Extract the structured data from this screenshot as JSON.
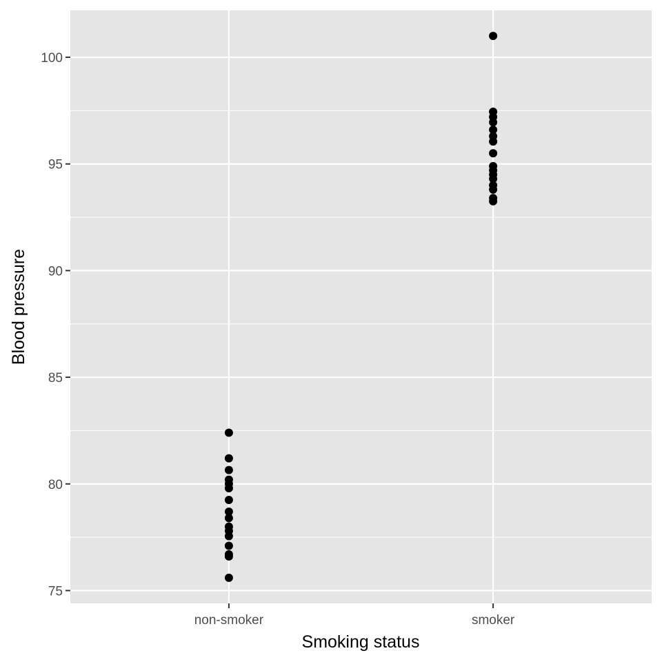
{
  "chart_data": {
    "type": "scatter",
    "title": "",
    "xlabel": "Smoking status",
    "ylabel": "Blood pressure",
    "categories": [
      "non-smoker",
      "smoker"
    ],
    "ylim": [
      74.4,
      102.2
    ],
    "y_ticks": [
      75,
      80,
      85,
      90,
      95,
      100
    ],
    "grid": true,
    "colors": {
      "panel": "#e5e5e5",
      "grid": "#ffffff",
      "point": "#000000"
    },
    "series": [
      {
        "category": "non-smoker",
        "values": [
          82.4,
          81.2,
          80.65,
          80.2,
          80.0,
          79.8,
          79.25,
          78.7,
          78.4,
          78.0,
          77.8,
          77.55,
          77.1,
          76.7,
          76.6,
          75.6
        ]
      },
      {
        "category": "smoker",
        "values": [
          101.0,
          97.45,
          97.2,
          96.95,
          96.6,
          96.3,
          96.05,
          95.5,
          94.9,
          94.7,
          94.5,
          94.3,
          94.0,
          93.8,
          93.4,
          93.25
        ]
      }
    ]
  }
}
